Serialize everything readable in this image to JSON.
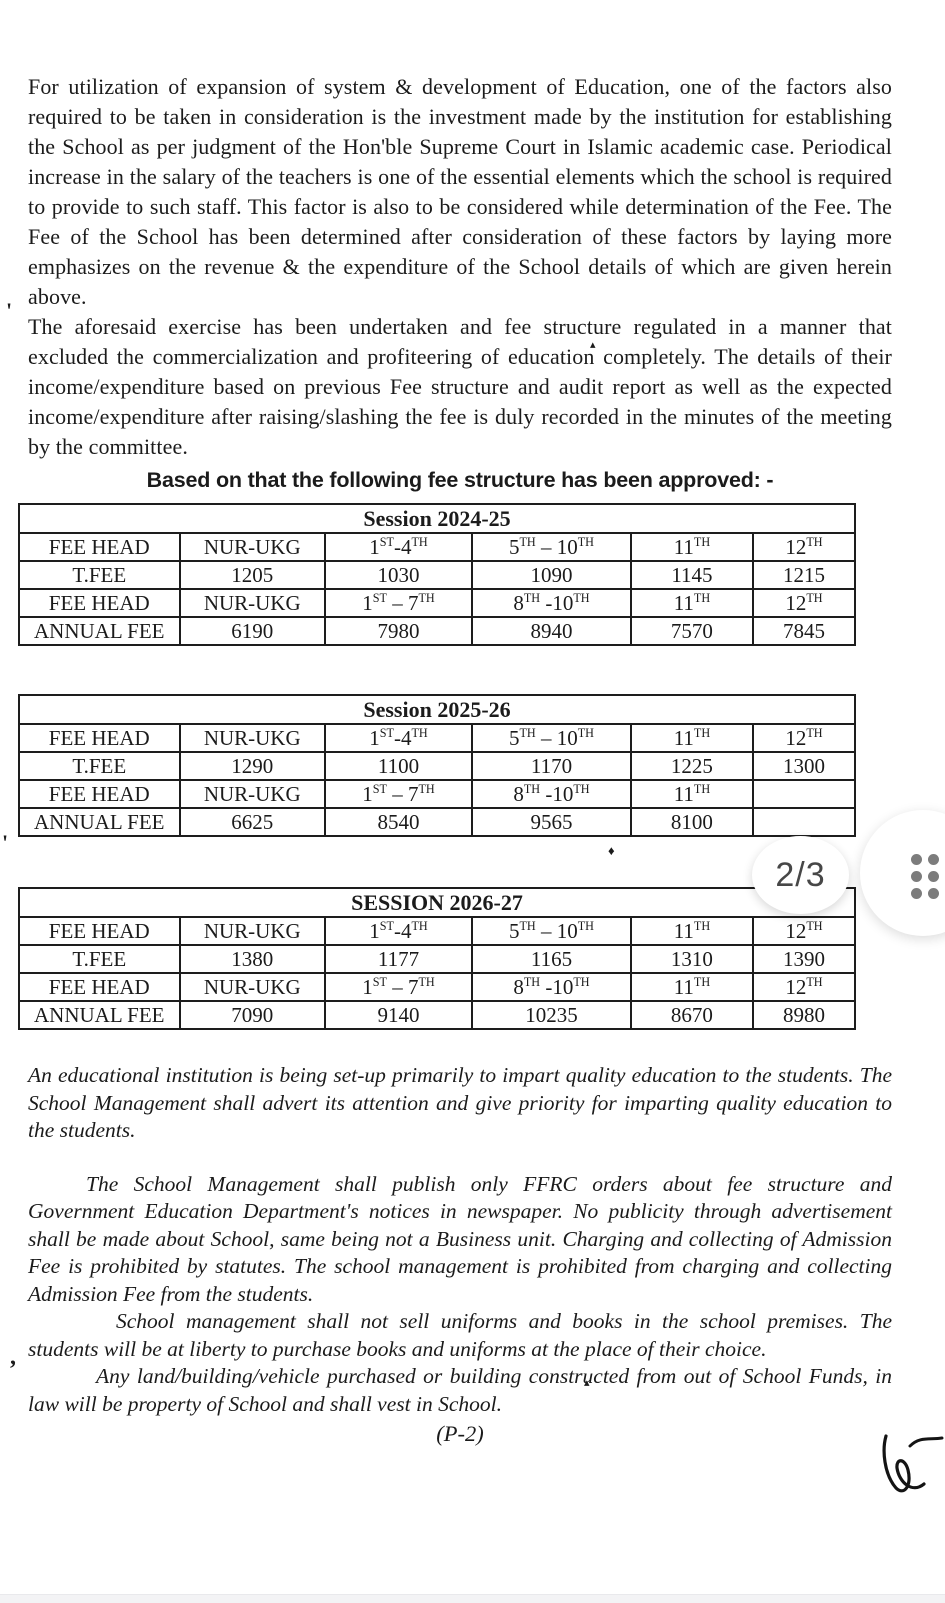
{
  "document": {
    "paragraph_1": "For utilization of expansion of system & development of Education, one of the factors also required to be taken in consideration is the investment made by the institution for establishing the School as per judgment of the Hon'ble Supreme Court in Islamic academic case. Periodical increase in the salary of the teachers is one of the essential elements which the school is required to provide to such staff. This factor is also to be considered while determination of the Fee. The Fee of the School has been determined after consideration of these factors by laying more emphasizes on the revenue & the expenditure of the School details of which are given herein above.",
    "paragraph_2": "The aforesaid exercise has been undertaken and fee structure regulated in a manner that excluded the commercialization and profiteering of education completely. The details of their income/expenditure based on previous Fee structure and audit report as well as the expected income/expenditure after raising/slashing the fee is duly recorded in the minutes of the meeting by the committee.",
    "heading": "Based on that the following fee structure has been approved: -",
    "italic_paragraphs": [
      "An educational institution is being set-up primarily to impart quality education to the students. The School Management shall advert its attention and give priority for imparting quality education to the students.",
      "The School Management shall publish only FFRC orders about fee structure and Government Education Department's notices in newspaper. No publicity through advertisement shall be made about School, same being not a Business unit. Charging and collecting of Admission Fee is prohibited by statutes. The school management is prohibited from charging and collecting Admission Fee from the students.",
      "School management shall not sell uniforms and books in the school premises. The students will be at liberty to purchase books and uniforms at the place of their choice.",
      "Any land/building/vehicle purchased or building constructed from out of School Funds, in law will be property of School and shall vest in School."
    ],
    "page_label": "(P-2)"
  },
  "tables": [
    {
      "title": "Session 2024-25",
      "rows": [
        [
          "FEE HEAD",
          "NUR-UKG",
          "1ST-4TH",
          "5TH – 10TH",
          "11TH",
          "12TH"
        ],
        [
          "T.FEE",
          "1205",
          "1030",
          "1090",
          "1145",
          "1215"
        ],
        [
          "FEE HEAD",
          "NUR-UKG",
          "1ST – 7TH",
          "8TH -10TH",
          "11TH",
          "12TH"
        ],
        [
          "ANNUAL FEE",
          "6190",
          "7980",
          "8940",
          "7570",
          "7845"
        ]
      ]
    },
    {
      "title": "Session 2025-26",
      "rows": [
        [
          "FEE HEAD",
          "NUR-UKG",
          "1ST-4TH",
          "5TH – 10TH",
          "11TH",
          "12TH"
        ],
        [
          "T.FEE",
          "1290",
          "1100",
          "1170",
          "1225",
          "1300"
        ],
        [
          "FEE HEAD",
          "NUR-UKG",
          "1ST – 7TH",
          "8TH -10TH",
          "11TH",
          ""
        ],
        [
          "ANNUAL FEE",
          "6625",
          "8540",
          "9565",
          "8100",
          ""
        ]
      ]
    },
    {
      "title": "SESSION 2026-27",
      "rows": [
        [
          "FEE HEAD",
          "NUR-UKG",
          "1ST-4TH",
          "5TH – 10TH",
          "11TH",
          "12TH"
        ],
        [
          "T.FEE",
          "1380",
          "1177",
          "1165",
          "1310",
          "1390"
        ],
        [
          "FEE HEAD",
          "NUR-UKG",
          "1ST – 7TH",
          "8TH -10TH",
          "11TH",
          "12TH"
        ],
        [
          "ANNUAL FEE",
          "7090",
          "9140",
          "10235",
          "8670",
          "8980"
        ]
      ]
    }
  ],
  "viewer": {
    "page_indicator": "2/3"
  },
  "marks": {
    "quote_top": "'",
    "quote_mid": "'",
    "comma_bottom": ",",
    "diamond": "♦",
    "caret_top": "▴",
    "caret_bottom": "▴"
  },
  "colors": {
    "ink": "#1b1b1b",
    "indicator_text": "#474747",
    "menu_dots": "#7c7c7c"
  }
}
